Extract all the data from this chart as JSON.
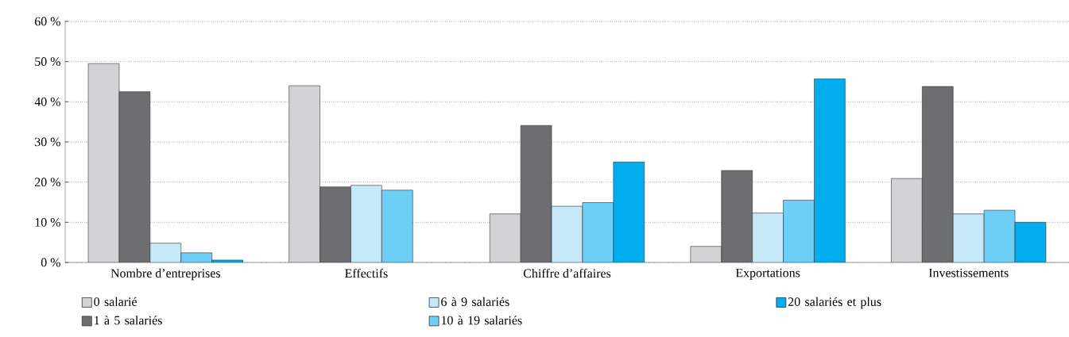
{
  "chart_data": {
    "type": "bar",
    "categories": [
      "Nombre d’entreprises",
      "Effectifs",
      "Chiffre d’affaires",
      "Exportations",
      "Investissements"
    ],
    "series": [
      {
        "name": "0 salarié",
        "color": "#d1d3d4",
        "values": [
          49.5,
          44,
          12.1,
          4.0,
          20.9
        ]
      },
      {
        "name": "1 à 5 salariés",
        "color": "#6d6e70",
        "values": [
          42.5,
          18.8,
          34.1,
          22.9,
          43.8
        ]
      },
      {
        "name": "6 à 9 salariés",
        "color": "#c6e8f9",
        "values": [
          4.8,
          19.2,
          14.0,
          12.3,
          12.1
        ]
      },
      {
        "name": "10 à 19 salariés",
        "color": "#6dcff6",
        "values": [
          2.4,
          18.0,
          14.9,
          15.5,
          13.0
        ]
      },
      {
        "name": "20 salariés et plus",
        "color": "#00aeef",
        "values": [
          0.6,
          null,
          25.0,
          45.7,
          10.0
        ]
      }
    ],
    "ylim": [
      0,
      60
    ],
    "yticks": [
      {
        "value": 0,
        "label": "0 %"
      },
      {
        "value": 10,
        "label": "10 %"
      },
      {
        "value": 20,
        "label": "20 %"
      },
      {
        "value": 30,
        "label": "30 %"
      },
      {
        "value": 40,
        "label": "40 %"
      },
      {
        "value": 50,
        "label": "50 %"
      },
      {
        "value": 60,
        "label": "60 %"
      }
    ],
    "grid": "y",
    "legend": "bottom"
  }
}
